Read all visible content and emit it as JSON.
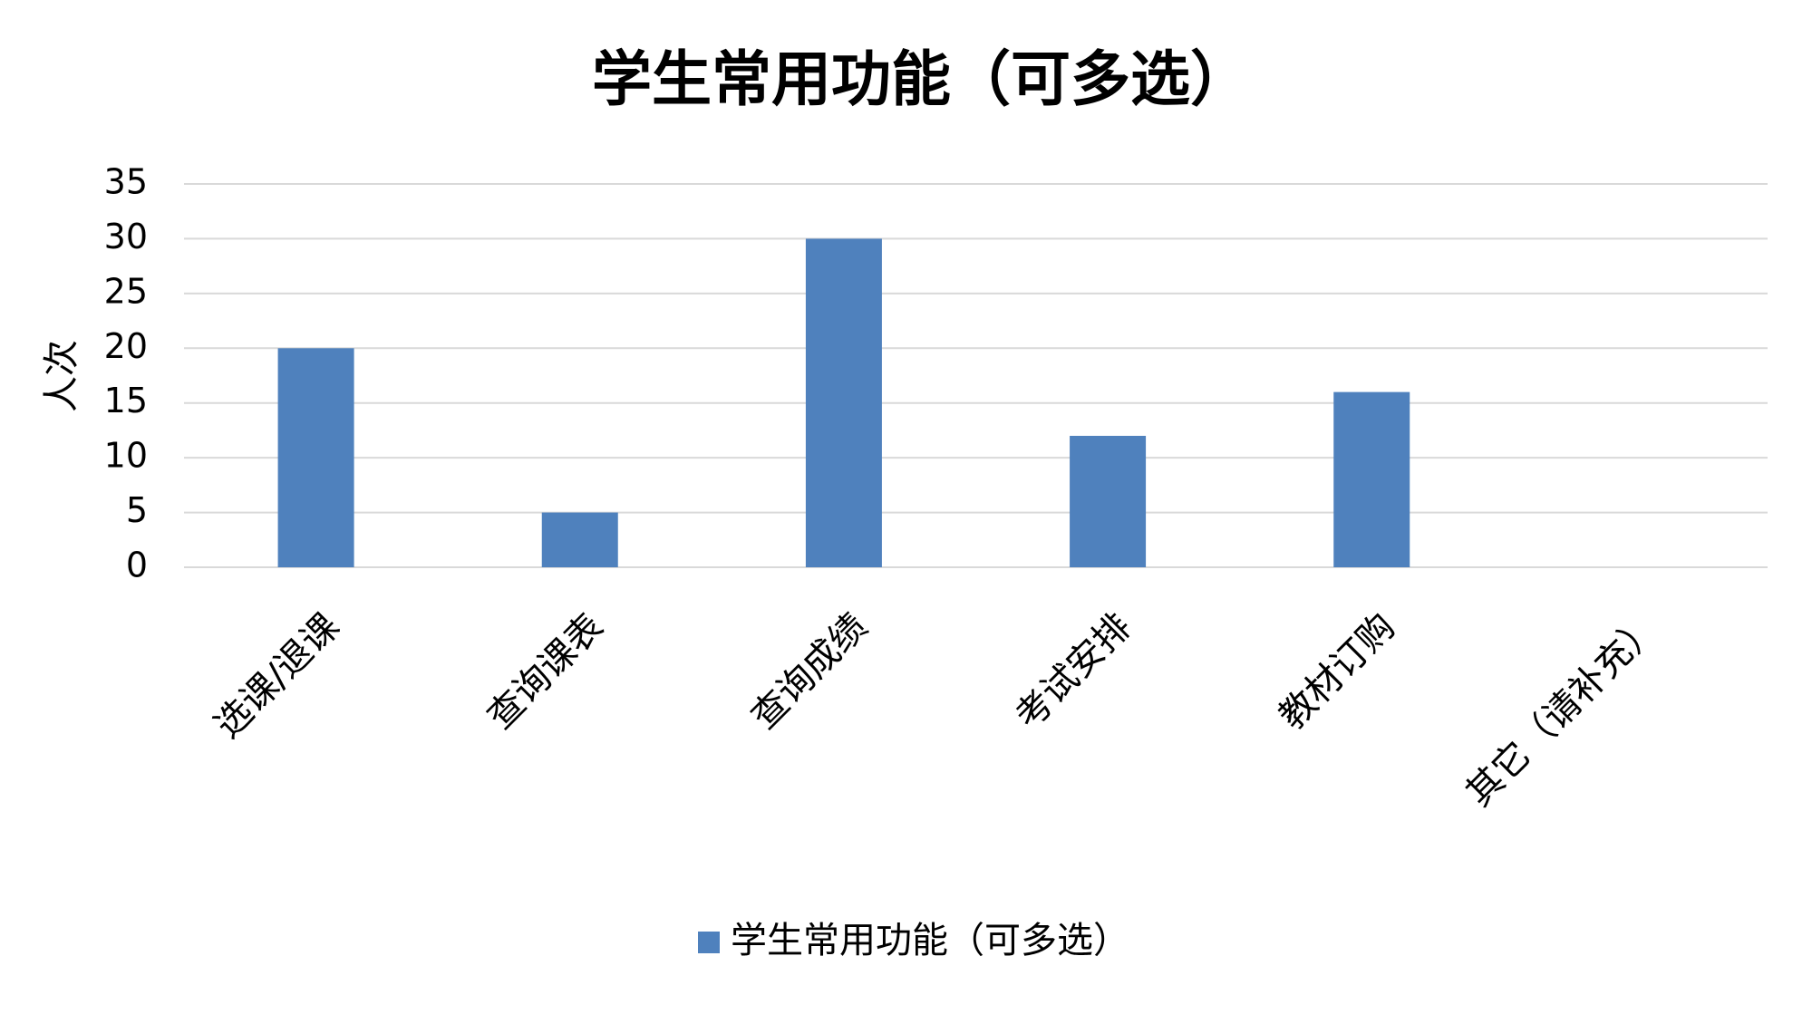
{
  "chart_data": {
    "type": "bar",
    "title": "学生常用功能（可多选）",
    "y_label": "人次",
    "categories": [
      "选课/退课",
      "查询课表",
      "查询成绩",
      "考试安排",
      "教材订购",
      "其它（请补充）"
    ],
    "series": [
      {
        "name": "学生常用功能（可多选）",
        "color": "#4f81bd",
        "values": [
          20,
          5,
          30,
          12,
          16,
          0
        ]
      }
    ],
    "ylim": [
      0,
      35
    ],
    "yticks": [
      0,
      5,
      10,
      15,
      20,
      25,
      30,
      35
    ],
    "grid": true,
    "legend": "bottom"
  }
}
